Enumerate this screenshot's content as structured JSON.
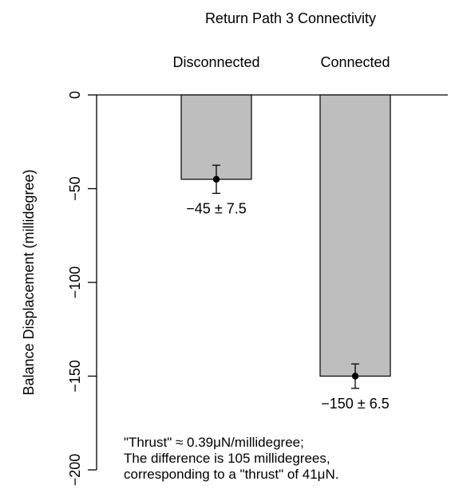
{
  "chart_data": {
    "type": "bar",
    "title": "Return Path 3 Connectivity",
    "xlabel": "",
    "ylabel": "Balance Displacement (millidegree)",
    "categories": [
      "Disconnected",
      "Connected"
    ],
    "values": [
      -45,
      -150
    ],
    "errors": [
      7.5,
      6.5
    ],
    "value_labels": [
      "−45 ± 7.5",
      "−150 ± 6.5"
    ],
    "ylim": [
      -200,
      0
    ],
    "yticks": [
      0,
      -50,
      -100,
      -150,
      -200
    ],
    "ytick_labels": [
      "0",
      "−50",
      "−100",
      "−150",
      "−200"
    ],
    "bar_color": "#bebebe",
    "grid": false,
    "legend": "none",
    "annotation": [
      "\"Thrust\" ≈ 0.39μN/millidegree;",
      "The difference is 105 millidegrees,",
      "corresponding to a \"thrust\" of 41μN."
    ]
  }
}
